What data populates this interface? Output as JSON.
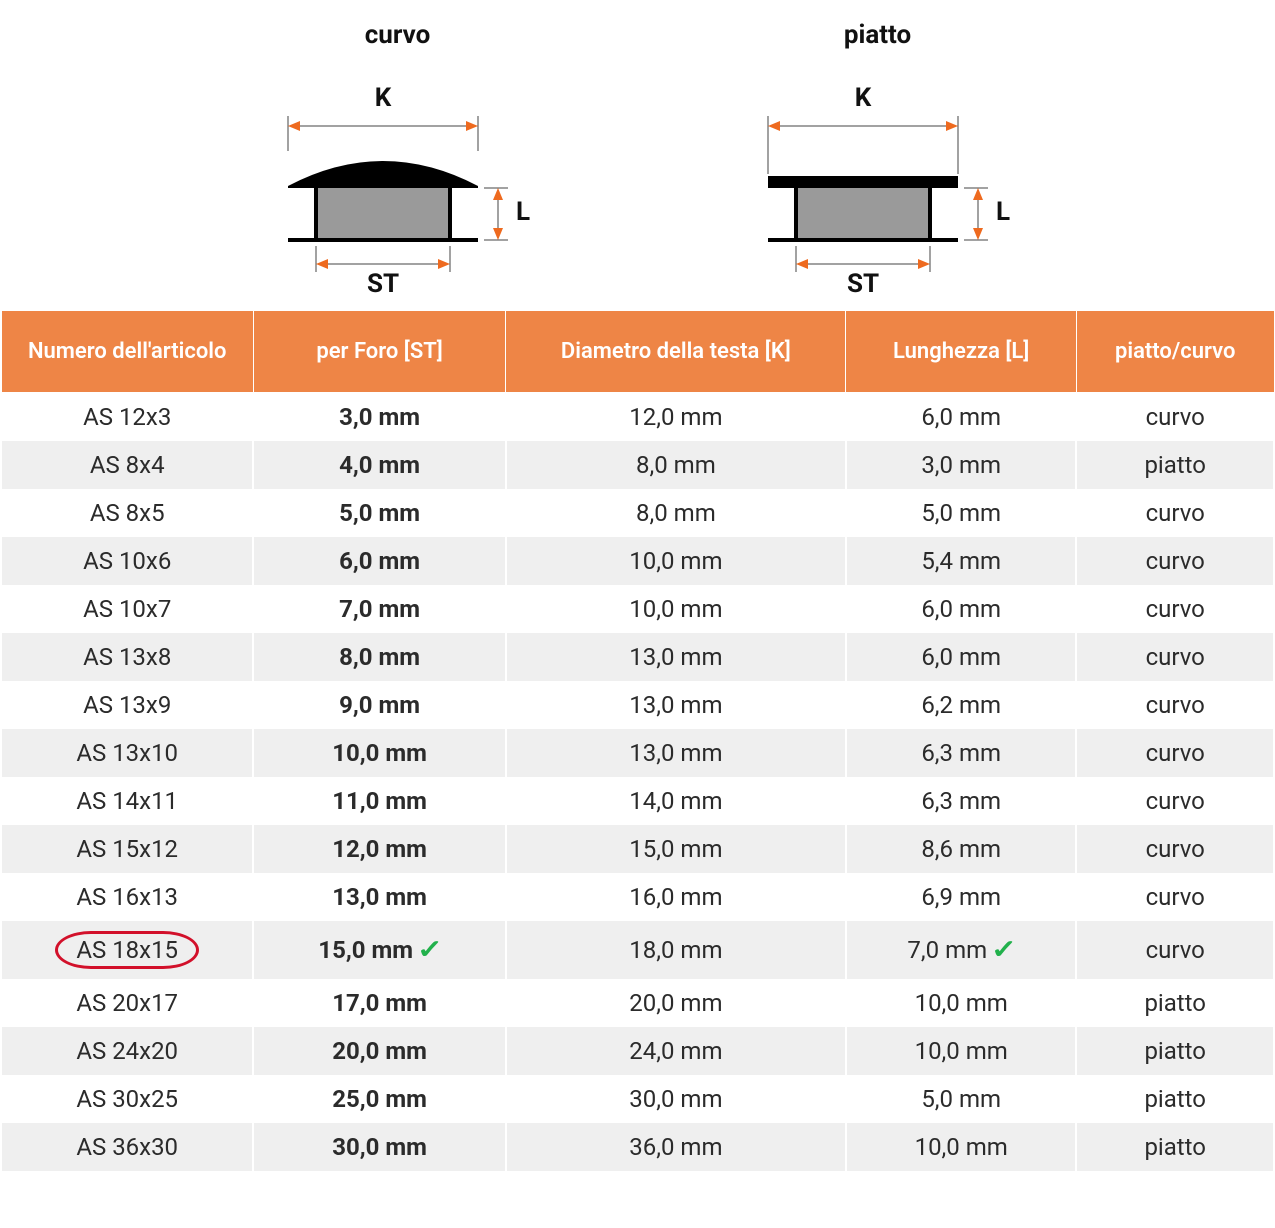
{
  "diagrams": {
    "curvo": {
      "title": "curvo",
      "labels": {
        "K": "K",
        "L": "L",
        "ST": "ST"
      }
    },
    "piatto": {
      "title": "piatto",
      "labels": {
        "K": "K",
        "L": "L",
        "ST": "ST"
      }
    },
    "colors": {
      "dimension_line": "#444444",
      "arrow": "#ee6a1f",
      "cap_top": "#000000",
      "cap_body": "#9a9a9a",
      "text": "#111111"
    }
  },
  "table": {
    "header_bg": "#ee8546",
    "header_fg": "#ffffff",
    "row_even_bg": "#efefef",
    "row_odd_bg": "#ffffff",
    "columns": [
      "Numero dell'articolo",
      "per Foro [ST]",
      "Diametro della testa [K]",
      "Lunghezza [L]",
      "piatto/curvo"
    ],
    "highlight_index": 11,
    "rows": [
      {
        "article": "AS 12x3",
        "st": "3,0 mm",
        "k": "12,0 mm",
        "l": "6,0 mm",
        "type": "curvo"
      },
      {
        "article": "AS 8x4",
        "st": "4,0 mm",
        "k": "8,0 mm",
        "l": "3,0 mm",
        "type": "piatto"
      },
      {
        "article": "AS 8x5",
        "st": "5,0 mm",
        "k": "8,0 mm",
        "l": "5,0 mm",
        "type": "curvo"
      },
      {
        "article": "AS 10x6",
        "st": "6,0 mm",
        "k": "10,0 mm",
        "l": "5,4 mm",
        "type": "curvo"
      },
      {
        "article": "AS 10x7",
        "st": "7,0 mm",
        "k": "10,0 mm",
        "l": "6,0 mm",
        "type": "curvo"
      },
      {
        "article": "AS 13x8",
        "st": "8,0 mm",
        "k": "13,0 mm",
        "l": "6,0 mm",
        "type": "curvo"
      },
      {
        "article": "AS 13x9",
        "st": "9,0 mm",
        "k": "13,0 mm",
        "l": "6,2 mm",
        "type": "curvo"
      },
      {
        "article": "AS 13x10",
        "st": "10,0 mm",
        "k": "13,0 mm",
        "l": "6,3 mm",
        "type": "curvo"
      },
      {
        "article": "AS 14x11",
        "st": "11,0 mm",
        "k": "14,0 mm",
        "l": "6,3 mm",
        "type": "curvo"
      },
      {
        "article": "AS 15x12",
        "st": "12,0 mm",
        "k": "15,0 mm",
        "l": "8,6 mm",
        "type": "curvo"
      },
      {
        "article": "AS 16x13",
        "st": "13,0 mm",
        "k": "16,0 mm",
        "l": "6,9 mm",
        "type": "curvo"
      },
      {
        "article": "AS 18x15",
        "st": "15,0 mm",
        "k": "18,0 mm",
        "l": "7,0 mm",
        "type": "curvo"
      },
      {
        "article": "AS 20x17",
        "st": "17,0 mm",
        "k": "20,0 mm",
        "l": "10,0 mm",
        "type": "piatto"
      },
      {
        "article": "AS 24x20",
        "st": "20,0 mm",
        "k": "24,0 mm",
        "l": "10,0 mm",
        "type": "piatto"
      },
      {
        "article": "AS 30x25",
        "st": "25,0 mm",
        "k": "30,0 mm",
        "l": "5,0 mm",
        "type": "piatto"
      },
      {
        "article": "AS 36x30",
        "st": "30,0 mm",
        "k": "36,0 mm",
        "l": "10,0 mm",
        "type": "piatto"
      }
    ]
  }
}
